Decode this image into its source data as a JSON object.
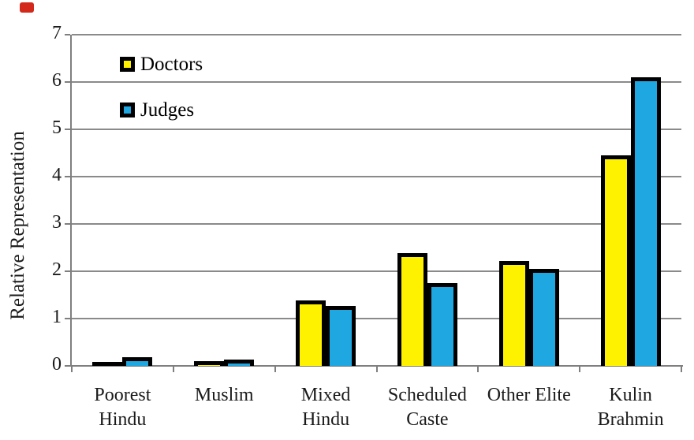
{
  "page": {
    "background": "#FFFFFF"
  },
  "decorations": {
    "red_marker_color": "#D2291B"
  },
  "chart_data": {
    "type": "bar",
    "title": "",
    "xlabel": "",
    "ylabel": "Relative Representation",
    "ylim": [
      0,
      7
    ],
    "yticks": [
      0,
      1,
      2,
      3,
      4,
      5,
      6,
      7
    ],
    "grid": "horizontal",
    "gridline_color": "#8A8A8A",
    "axis_color": "#7F7F7F",
    "text_color": "#1A1A1A",
    "bar_border_color": "#000000",
    "legend_position": "top-left-inside",
    "categories": [
      "Poorest Hindu",
      "Muslim",
      "Mixed Hindu",
      "Scheduled Caste",
      "Other Elite",
      "Kulin Brahmin"
    ],
    "category_label_lines": [
      [
        "Poorest",
        "Hindu"
      ],
      [
        "Muslim"
      ],
      [
        "Mixed",
        "Hindu"
      ],
      [
        "Scheduled",
        "Caste"
      ],
      [
        "Other Elite"
      ],
      [
        "Kulin",
        "Brahmin"
      ]
    ],
    "series": [
      {
        "name": "Doctors",
        "color": "#FFF200",
        "values": [
          0.08,
          0.1,
          1.38,
          2.38,
          2.22,
          4.45
        ]
      },
      {
        "name": "Judges",
        "color": "#1FA7E2",
        "values": [
          0.18,
          0.14,
          1.27,
          1.75,
          2.05,
          6.1
        ]
      }
    ]
  }
}
